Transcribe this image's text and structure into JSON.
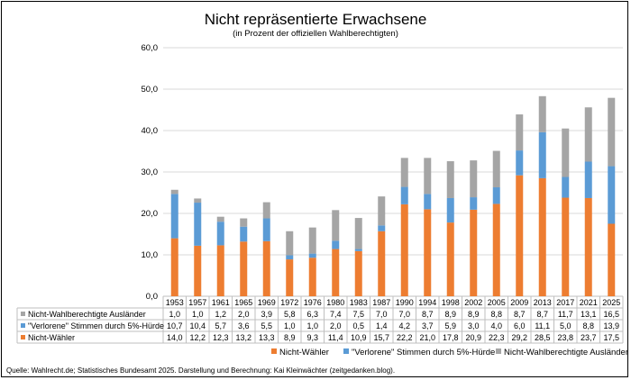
{
  "chart_data": {
    "type": "bar",
    "stacked": true,
    "title": "Nicht repräsentierte Erwachsene",
    "subtitle": "(in Prozent der offiziellen Wahlberechtigten)",
    "categories": [
      "1953",
      "1957",
      "1961",
      "1965",
      "1969",
      "1972",
      "1976",
      "1980",
      "1983",
      "1987",
      "1990",
      "1994",
      "1998",
      "2002",
      "2005",
      "2009",
      "2013",
      "2017",
      "2021",
      "2025"
    ],
    "ylim": [
      0,
      60
    ],
    "yticks": [
      "0,0",
      "10,0",
      "20,0",
      "30,0",
      "40,0",
      "50,0",
      "60,0"
    ],
    "grid": true,
    "legend_position": "bottom",
    "series": [
      {
        "name": "Nicht-Wähler",
        "color": "#ED7D31",
        "values": [
          14.0,
          12.2,
          12.3,
          13.2,
          13.3,
          8.9,
          9.3,
          11.4,
          10.9,
          15.7,
          22.2,
          21.0,
          17.8,
          20.9,
          22.3,
          29.2,
          28.5,
          23.8,
          23.7,
          17.5
        ],
        "labels": [
          "14,0",
          "12,2",
          "12,3",
          "13,2",
          "13,3",
          "8,9",
          "9,3",
          "11,4",
          "10,9",
          "15,7",
          "22,2",
          "21,0",
          "17,8",
          "20,9",
          "22,3",
          "29,2",
          "28,5",
          "23,8",
          "23,7",
          "17,5"
        ]
      },
      {
        "name": "\"Verlorene\" Stimmen durch 5%-Hürde",
        "color": "#5B9BD5",
        "values": [
          10.7,
          10.4,
          5.7,
          3.6,
          5.5,
          1.0,
          1.0,
          2.0,
          0.5,
          1.4,
          4.2,
          3.7,
          5.9,
          3.0,
          4.0,
          6.0,
          11.1,
          5.0,
          8.8,
          13.9
        ],
        "labels": [
          "10,7",
          "10,4",
          "5,7",
          "3,6",
          "5,5",
          "1,0",
          "1,0",
          "2,0",
          "0,5",
          "1,4",
          "4,2",
          "3,7",
          "5,9",
          "3,0",
          "4,0",
          "6,0",
          "11,1",
          "5,0",
          "8,8",
          "13,9"
        ]
      },
      {
        "name": "Nicht-Wahlberechtigte Ausländer",
        "color": "#A5A5A5",
        "values": [
          1.0,
          1.0,
          1.2,
          2.0,
          3.9,
          5.8,
          6.3,
          7.4,
          7.5,
          7.0,
          7.0,
          8.7,
          8.9,
          8.9,
          8.8,
          8.7,
          8.7,
          11.7,
          13.1,
          16.5
        ],
        "labels": [
          "1,0",
          "1,0",
          "1,2",
          "2,0",
          "3,9",
          "5,8",
          "6,3",
          "7,4",
          "7,5",
          "7,0",
          "7,0",
          "8,7",
          "8,9",
          "8,9",
          "8,8",
          "8,7",
          "8,7",
          "11,7",
          "13,1",
          "16,5"
        ]
      }
    ]
  },
  "footer": {
    "source": "Quelle: Wahlrecht.de; Statistisches Bundesamt 2025. Darstellung und Berechnung: Kai Kleinwächter (zeitgedanken.blog)."
  }
}
